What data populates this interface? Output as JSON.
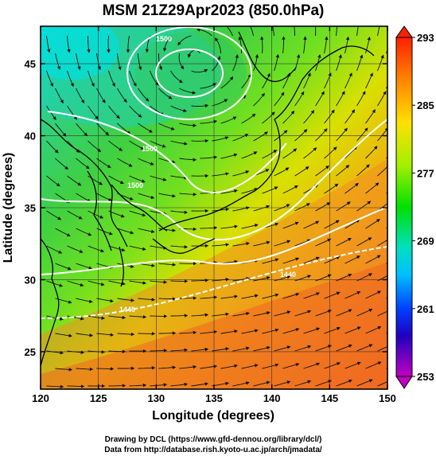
{
  "title": "MSM 21Z29Apr2023 (850.0hPa)",
  "xlabel": "Longitude (degrees)",
  "ylabel": "Latitude  (degrees)",
  "x_ticks": [
    "120",
    "125",
    "130",
    "135",
    "140",
    "145",
    "150"
  ],
  "y_ticks": [
    "25",
    "30",
    "35",
    "40",
    "45"
  ],
  "colorbar_ticks": [
    "293",
    "285",
    "277",
    "269",
    "261",
    "253"
  ],
  "credits": [
    "Drawing by DCL (https://www.gfd-dennou.org/library/dcl/)",
    "Data from http://database.rish.kyoto-u.ac.jp/arch/jmadata/"
  ],
  "contour_labels": [
    "1500",
    "1500",
    "1500",
    "1440",
    "1440"
  ],
  "map_data": {
    "lon_range": [
      120,
      150
    ],
    "lat_range": [
      22.4,
      47.6
    ],
    "field": "temperature (K)",
    "color_range": [
      253,
      293
    ],
    "colors": {
      "cold": "#00e0e0",
      "cool": "#40c060",
      "mild": "#60e020",
      "warm": "#e0e000",
      "hot": "#f08020",
      "hottest": "#f04020"
    }
  }
}
